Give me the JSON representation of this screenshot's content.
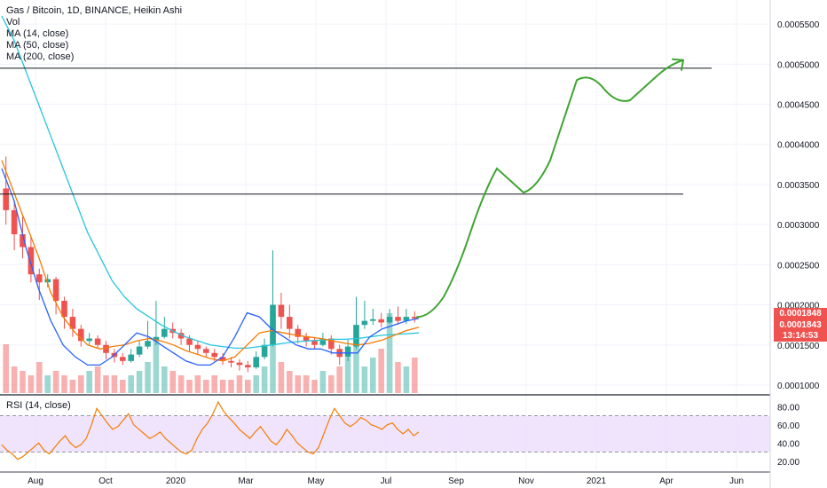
{
  "legend": {
    "title": "Gas / Bitcoin, 1D, BINANCE, Heikin Ashi",
    "vol": "Vol",
    "ma14": "MA (14, close)",
    "ma50": "MA (50, close)",
    "ma200": "MA (200, close)"
  },
  "rsi_title": "RSI (14, close)",
  "price_tags": {
    "last": "0.0001848",
    "ma": "0.0001843",
    "countdown": "13:14:53"
  },
  "colors": {
    "up": "#26a69a",
    "down": "#ef5350",
    "ma14": "#2962ff",
    "ma50": "#f57c00",
    "ma200": "#26c6da",
    "drawing": "#3fa531",
    "rsi_line": "#f57c00",
    "rsi_band": "#e9d9fb",
    "price_tag": "#ef5350"
  },
  "chart_data": [
    {
      "type": "candlestick",
      "title": "Gas / Bitcoin, 1D, BINANCE, Heikin Ashi",
      "x_tick_labels": [
        "Aug",
        "Oct",
        "2020",
        "Mar",
        "May",
        "Jul",
        "Sep",
        "Nov",
        "2021",
        "Apr",
        "Jun"
      ],
      "y_tick_labels": [
        "0.0005500",
        "0.0005000",
        "0.0004500",
        "0.0004000",
        "0.0003500",
        "0.0003000",
        "0.0002500",
        "0.0002000",
        "0.0001500",
        "0.0001000"
      ],
      "ylim": [
        9e-05,
        0.00058
      ],
      "horizontal_lines": [
        0.000495,
        0.000338
      ],
      "last_price": 0.0001848,
      "ma_value": 0.0001843,
      "ma14": [
        0.00037,
        0.00033,
        0.00027,
        0.00022,
        0.00018,
        0.00015,
        0.000135,
        0.000125,
        0.000125,
        0.000135,
        0.00015,
        0.000165,
        0.00016,
        0.00015,
        0.00014,
        0.00013,
        0.000125,
        0.000125,
        0.000135,
        0.00016,
        0.00019,
        0.000185,
        0.00017,
        0.00016,
        0.00015,
        0.000145,
        0.000145,
        0.00014,
        0.00014,
        0.00014,
        0.00016,
        0.00017,
        0.000175,
        0.00018,
        0.000183
      ],
      "ma50": [
        0.00038,
        0.00034,
        0.0003,
        0.00026,
        0.000215,
        0.000185,
        0.000165,
        0.00015,
        0.000145,
        0.000148,
        0.00015,
        0.000155,
        0.000158,
        0.000155,
        0.00015,
        0.000143,
        0.000138,
        0.000133,
        0.00013,
        0.000135,
        0.00015,
        0.000165,
        0.000168,
        0.000165,
        0.000162,
        0.00016,
        0.000158,
        0.000155,
        0.000152,
        0.00015,
        0.000152,
        0.000156,
        0.000162,
        0.000168,
        0.000172
      ],
      "ma200": [
        0.00056,
        0.00053,
        0.00049,
        0.00045,
        0.00041,
        0.00037,
        0.00033,
        0.00029,
        0.00026,
        0.00023,
        0.00021,
        0.000195,
        0.000185,
        0.000175,
        0.000167,
        0.00016,
        0.000155,
        0.00015,
        0.000148,
        0.000146,
        0.000146,
        0.000148,
        0.00015,
        0.000152,
        0.000154,
        0.000155,
        0.000156,
        0.000157,
        0.000157,
        0.000158,
        0.00016,
        0.000162,
        0.000163,
        0.000164,
        0.000165
      ],
      "candles": [
        [
          0.000345,
          0.000318,
          0.000385,
          0.0003
        ],
        [
          0.000318,
          0.000288,
          0.00033,
          0.000268
        ],
        [
          0.000288,
          0.000272,
          0.00031,
          0.000258
        ],
        [
          0.000272,
          0.000238,
          0.000285,
          0.000228
        ],
        [
          0.000238,
          0.000228,
          0.000245,
          0.000206
        ],
        [
          0.000228,
          0.000232,
          0.000238,
          0.000222
        ],
        [
          0.000232,
          0.000205,
          0.000235,
          0.000188
        ],
        [
          0.000205,
          0.000185,
          0.00021,
          0.00017
        ],
        [
          0.000185,
          0.00017,
          0.000195,
          0.00016
        ],
        [
          0.00017,
          0.000155,
          0.000175,
          0.000148
        ],
        [
          0.000155,
          0.000158,
          0.000165,
          0.00015
        ],
        [
          0.000158,
          0.00015,
          0.000162,
          0.000145
        ],
        [
          0.00015,
          0.00014,
          0.000155,
          0.000132
        ],
        [
          0.00014,
          0.000135,
          0.000145,
          0.000128
        ],
        [
          0.000135,
          0.00013,
          0.00014,
          0.000125
        ],
        [
          0.00013,
          0.000138,
          0.000145,
          0.000128
        ],
        [
          0.000138,
          0.000148,
          0.000155,
          0.000135
        ],
        [
          0.000148,
          0.000155,
          0.00018,
          0.000145
        ],
        [
          0.000155,
          0.00016,
          0.000205,
          0.00015
        ],
        [
          0.00016,
          0.00017,
          0.000185,
          0.000158
        ],
        [
          0.00017,
          0.000165,
          0.000178,
          0.000158
        ],
        [
          0.000165,
          0.000158,
          0.00017,
          0.00015
        ],
        [
          0.000158,
          0.00015,
          0.000162,
          0.000142
        ],
        [
          0.00015,
          0.000145,
          0.000155,
          0.000138
        ],
        [
          0.000145,
          0.00014,
          0.000148,
          0.000135
        ],
        [
          0.00014,
          0.000135,
          0.000145,
          0.00013
        ],
        [
          0.000135,
          0.00013,
          0.00014,
          0.000125
        ],
        [
          0.00013,
          0.000128,
          0.000135,
          0.000122
        ],
        [
          0.000128,
          0.000125,
          0.000132,
          0.000118
        ],
        [
          0.000125,
          0.000122,
          0.00013,
          0.000116
        ],
        [
          0.000122,
          0.000135,
          0.000142,
          0.00012
        ],
        [
          0.000135,
          0.00015,
          0.000158,
          0.000132
        ],
        [
          0.00015,
          0.0002,
          0.000268,
          0.000148
        ],
        [
          0.0002,
          0.000185,
          0.000215,
          0.00017
        ],
        [
          0.000185,
          0.00017,
          0.0002,
          0.000158
        ],
        [
          0.00017,
          0.00016,
          0.000175,
          0.000152
        ],
        [
          0.00016,
          0.000155,
          0.000165,
          0.000148
        ],
        [
          0.000155,
          0.00015,
          0.00016,
          0.000145
        ],
        [
          0.00015,
          0.000158,
          0.000165,
          0.000148
        ],
        [
          0.000158,
          0.000145,
          0.000162,
          0.000138
        ],
        [
          0.000145,
          0.000135,
          0.00015,
          0.000125
        ],
        [
          0.000135,
          0.000148,
          0.000158,
          0.00013
        ],
        [
          0.000148,
          0.000175,
          0.00021,
          0.000145
        ],
        [
          0.000175,
          0.00018,
          0.000205,
          0.00017
        ],
        [
          0.00018,
          0.000182,
          0.000195,
          0.000175
        ],
        [
          0.000182,
          0.000178,
          0.00019,
          0.000172
        ],
        [
          0.000178,
          0.000185,
          0.000195,
          0.000176
        ],
        [
          0.000185,
          0.00018,
          0.000198,
          0.000175
        ],
        [
          0.00018,
          0.000185,
          0.000195,
          0.000176
        ],
        [
          0.000185,
          0.000183,
          0.000192,
          0.000178
        ]
      ],
      "volumes": [
        0.55,
        0.3,
        0.25,
        0.2,
        0.35,
        0.2,
        0.25,
        0.2,
        0.15,
        0.2,
        0.25,
        0.3,
        0.2,
        0.2,
        0.15,
        0.2,
        0.25,
        0.35,
        0.6,
        0.3,
        0.25,
        0.2,
        0.15,
        0.2,
        0.15,
        0.2,
        0.15,
        0.15,
        0.2,
        0.15,
        0.2,
        0.3,
        0.9,
        0.35,
        0.25,
        0.2,
        0.2,
        0.15,
        0.25,
        0.2,
        0.3,
        0.4,
        0.6,
        0.3,
        0.4,
        0.5,
        0.9,
        0.35,
        0.3,
        0.4
      ],
      "projection": [
        [
          0.000185,
          0.00021
        ],
        [
          0.00024,
          0.00029
        ],
        [
          0.00034,
          0.00037
        ],
        [
          0.000355,
          0.00034
        ],
        [
          0.000345,
          0.00038
        ],
        [
          0.00043,
          0.00048
        ],
        [
          0.00049,
          0.00047
        ],
        [
          0.00045,
          0.000455
        ],
        [
          0.00047,
          0.000485
        ],
        [
          0.0005,
          0.000505
        ]
      ]
    },
    {
      "type": "line",
      "title": "RSI (14, close)",
      "y_tick_labels": [
        "80.00",
        "60.00",
        "40.00",
        "20.00"
      ],
      "ylim": [
        10,
        90
      ],
      "bands": [
        70,
        30
      ],
      "values": [
        38,
        32,
        28,
        22,
        25,
        30,
        35,
        40,
        32,
        28,
        35,
        42,
        48,
        40,
        35,
        38,
        45,
        60,
        78,
        70,
        62,
        55,
        58,
        65,
        72,
        60,
        55,
        50,
        45,
        48,
        52,
        45,
        40,
        35,
        30,
        28,
        32,
        45,
        55,
        62,
        72,
        85,
        75,
        68,
        62,
        55,
        50,
        45,
        52,
        58,
        50,
        42,
        38,
        45,
        55,
        48,
        40,
        35,
        30,
        28,
        35,
        50,
        65,
        78,
        70,
        62,
        58,
        62,
        68,
        65,
        60,
        58,
        55,
        60,
        62,
        55,
        50,
        55,
        48,
        52
      ]
    }
  ]
}
